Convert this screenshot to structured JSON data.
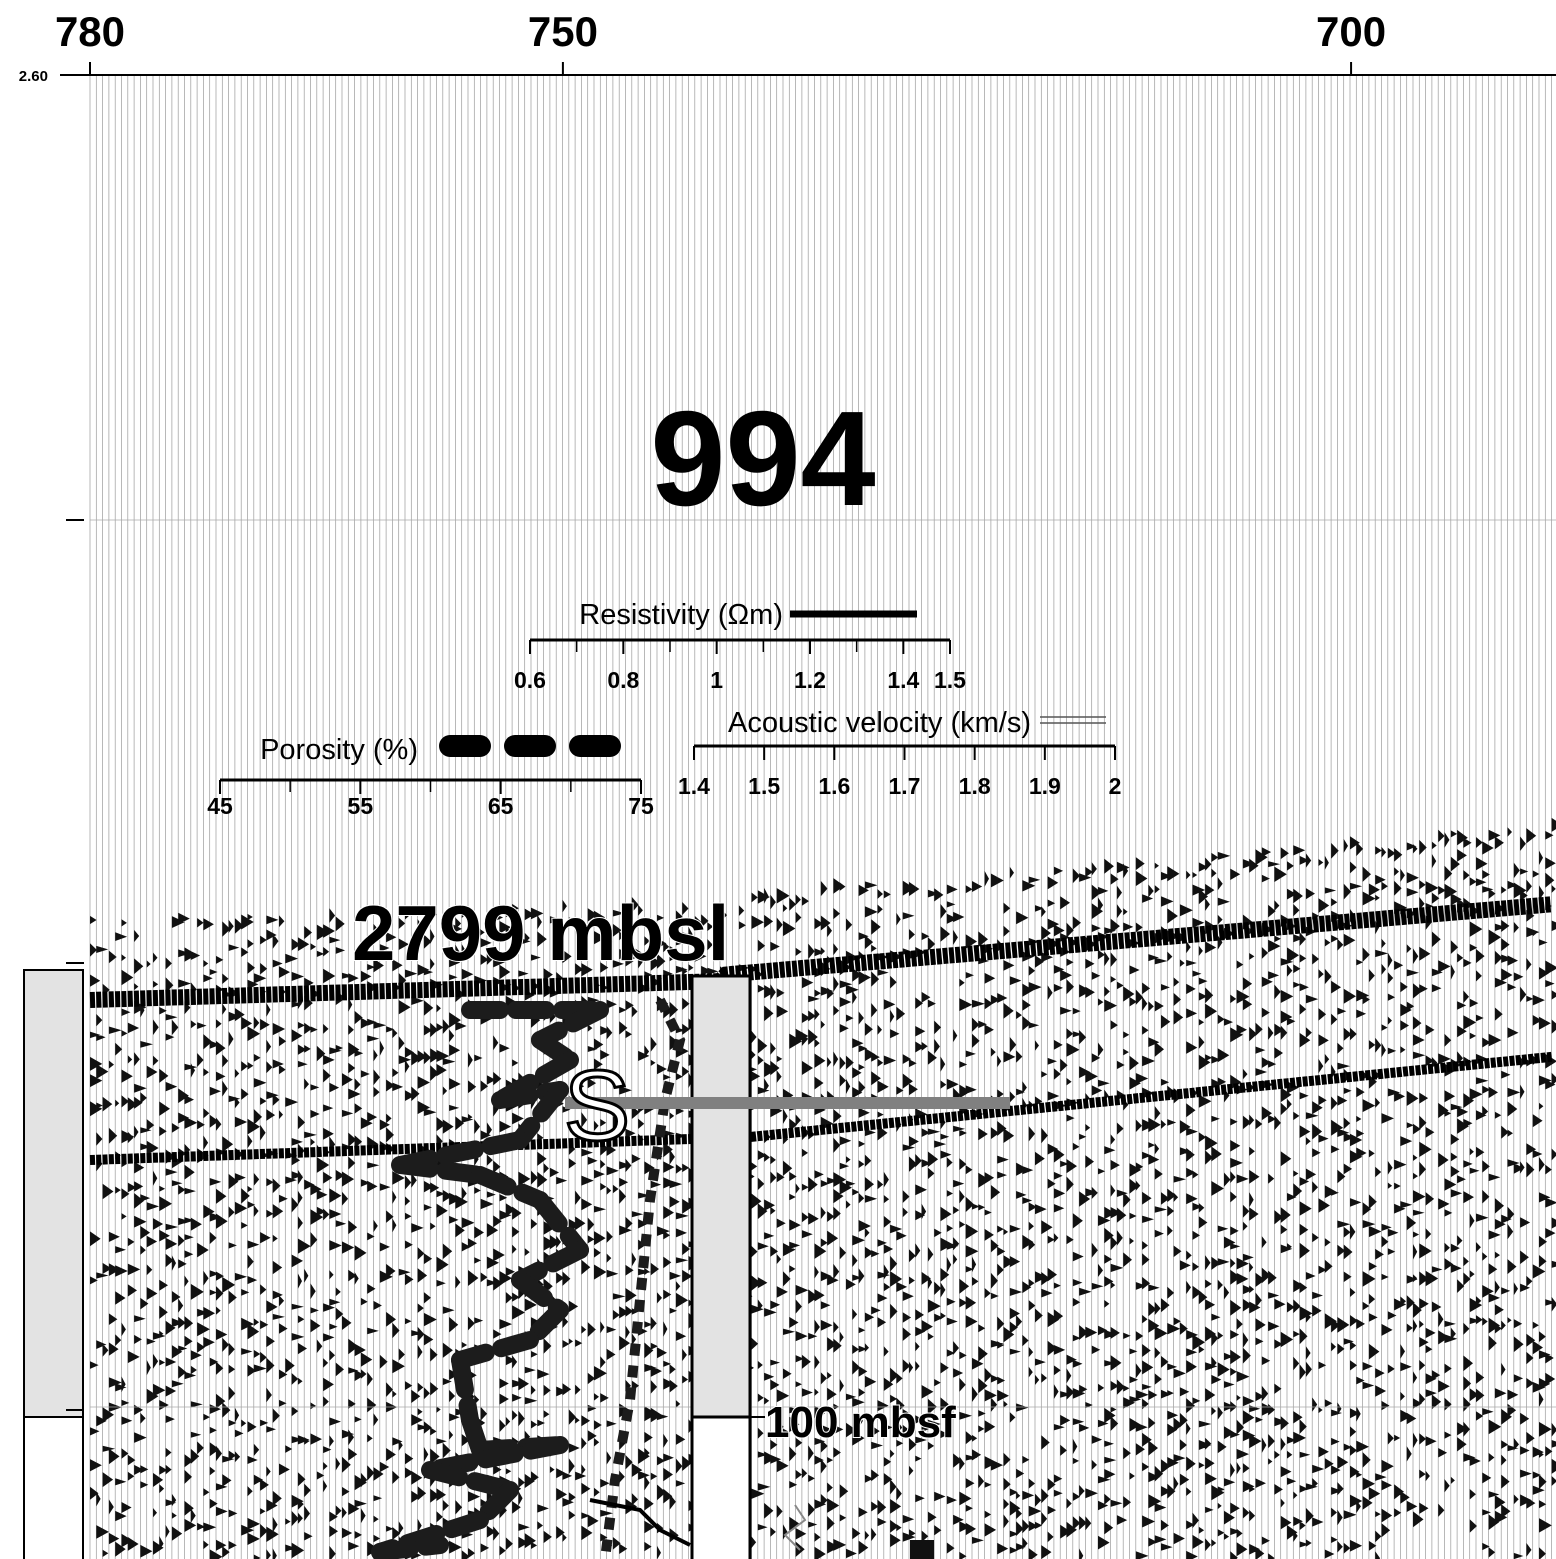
{
  "top_axis": {
    "xlim": [
      780,
      687
    ],
    "ticks": [
      780,
      750,
      700
    ]
  },
  "left_axis": {
    "ticks": [
      {
        "value": 2.6,
        "label": "2.60"
      }
    ]
  },
  "labels": {
    "site": "994",
    "depth": "2799 mbsl",
    "base": "100 mbsf",
    "reflector": "S"
  },
  "scales": [
    {
      "name": "Resistivity (Ωm)",
      "lim": [
        0.6,
        1.5
      ],
      "ticks": [
        0.6,
        0.8,
        1,
        1.2,
        1.4,
        1.5
      ],
      "minor_ticks": [
        0.7,
        0.9,
        1.1,
        1.3
      ]
    },
    {
      "name": "Acoustic velocity (km/s)",
      "lim": [
        1.4,
        2
      ],
      "ticks": [
        1.4,
        1.5,
        1.6,
        1.7,
        1.8,
        1.9,
        2
      ],
      "minor_ticks": []
    },
    {
      "name": "Porosity (%)",
      "lim": [
        45,
        75
      ],
      "ticks": [
        45,
        55,
        65,
        75
      ],
      "minor_ticks": [
        50,
        60,
        70
      ]
    }
  ]
}
